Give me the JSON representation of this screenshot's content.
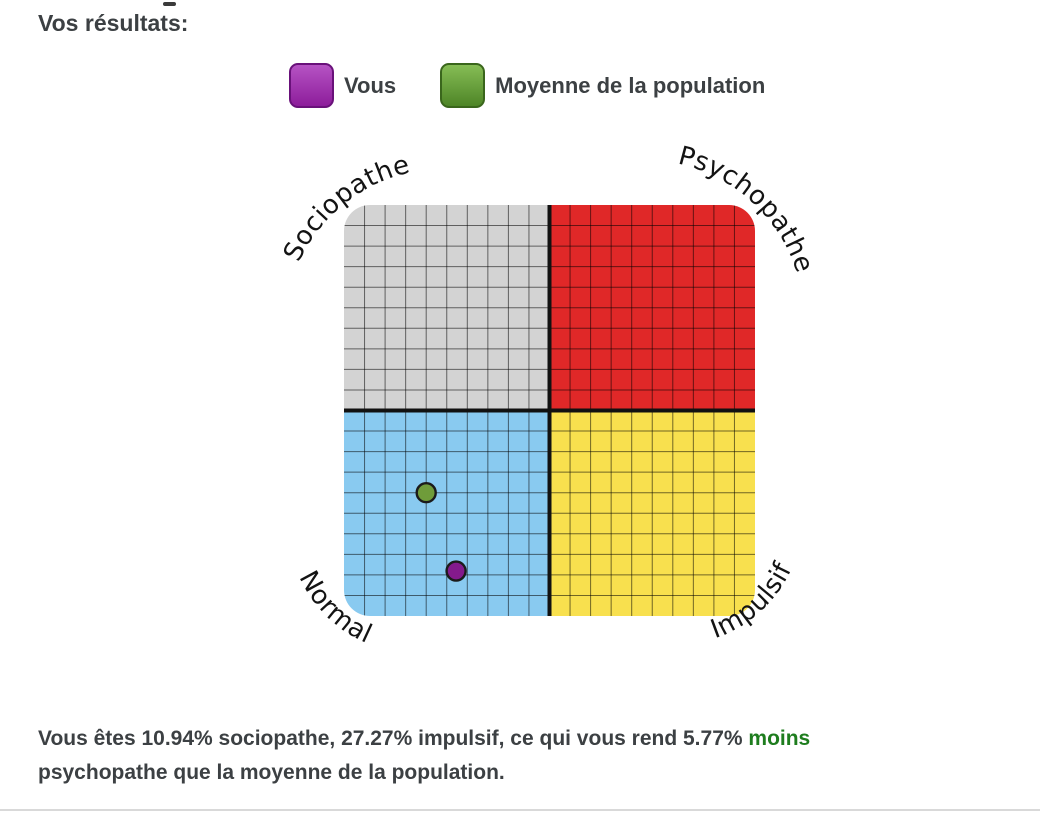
{
  "page": {
    "title": "Vos résultats:"
  },
  "legend": {
    "items": [
      {
        "label": "Vous",
        "color_top": "#b653c4",
        "color": "#8d1d9b",
        "border": "#69117a"
      },
      {
        "label": "Moyenne de la population",
        "color_top": "#86bd55",
        "color": "#4e8527",
        "border": "#3a661c"
      }
    ]
  },
  "chart_data": {
    "type": "scatter",
    "description": "Quadrant grid chart of sociopathy (vertical) vs impulsivity (horizontal)",
    "quadrants": [
      {
        "position": "top-left",
        "label": "Sociopathe",
        "color": "#d3d3d3"
      },
      {
        "position": "top-right",
        "label": "Psychopathe",
        "color": "#e02828"
      },
      {
        "position": "bottom-left",
        "label": "Normal",
        "color": "#89caf0"
      },
      {
        "position": "bottom-right",
        "label": "Impulsif",
        "color": "#f8e04e"
      }
    ],
    "axes": {
      "x": {
        "name": "Impulsif",
        "range": [
          0,
          100
        ]
      },
      "y": {
        "name": "Sociopathe",
        "range": [
          0,
          100
        ]
      }
    },
    "grid": {
      "cells_per_quadrant": 10,
      "line_color": "rgba(0,0,0,0.55)",
      "axis_color": "#111111"
    },
    "points": [
      {
        "name": "Vous",
        "x_impulsif_pct": 27.27,
        "y_sociopathe_pct": 10.94,
        "fill": "#841a8c",
        "stroke": "#1b1b1b"
      },
      {
        "name": "Moyenne de la population",
        "x_impulsif_pct": 20,
        "y_sociopathe_pct": 30,
        "fill": "#6f9c3a",
        "stroke": "#1b1b1b"
      }
    ]
  },
  "result": {
    "line1_part1": "Vous êtes 10.94% sociopathe, 27.27% impulsif, ce qui vous rend 5.77% ",
    "line1_highlight": "moins",
    "line2": "psychopathe que la moyenne de la population.",
    "highlight_color": "#1e7d1e",
    "values": {
      "sociopathe_pct": "10.94%",
      "impulsif_pct": "27.27%",
      "difference_pct": "5.77%"
    }
  }
}
